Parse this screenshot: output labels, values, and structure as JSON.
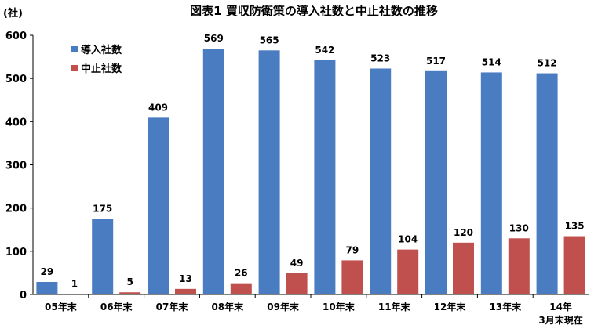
{
  "chart_data": {
    "type": "bar",
    "title": "図表1  買収防衛策の導入社数と中止社数の推移",
    "y_unit": "(社)",
    "categories": [
      "05年末",
      "06年末",
      "07年末",
      "08年末",
      "09年末",
      "10年末",
      "11年末",
      "12年末",
      "13年末",
      "14年"
    ],
    "last_category_sub": "3月末現在",
    "series": [
      {
        "name": "導入社数",
        "color": "#4a7cc2",
        "values": [
          29,
          175,
          409,
          569,
          565,
          542,
          523,
          517,
          514,
          512
        ]
      },
      {
        "name": "中止社数",
        "color": "#c0504d",
        "values": [
          1,
          5,
          13,
          26,
          49,
          79,
          104,
          120,
          130,
          135
        ]
      }
    ],
    "yticks": [
      0,
      100,
      200,
      300,
      400,
      500,
      600
    ],
    "ylim": [
      0,
      600
    ],
    "grid": false,
    "legend_position": "top-left"
  }
}
